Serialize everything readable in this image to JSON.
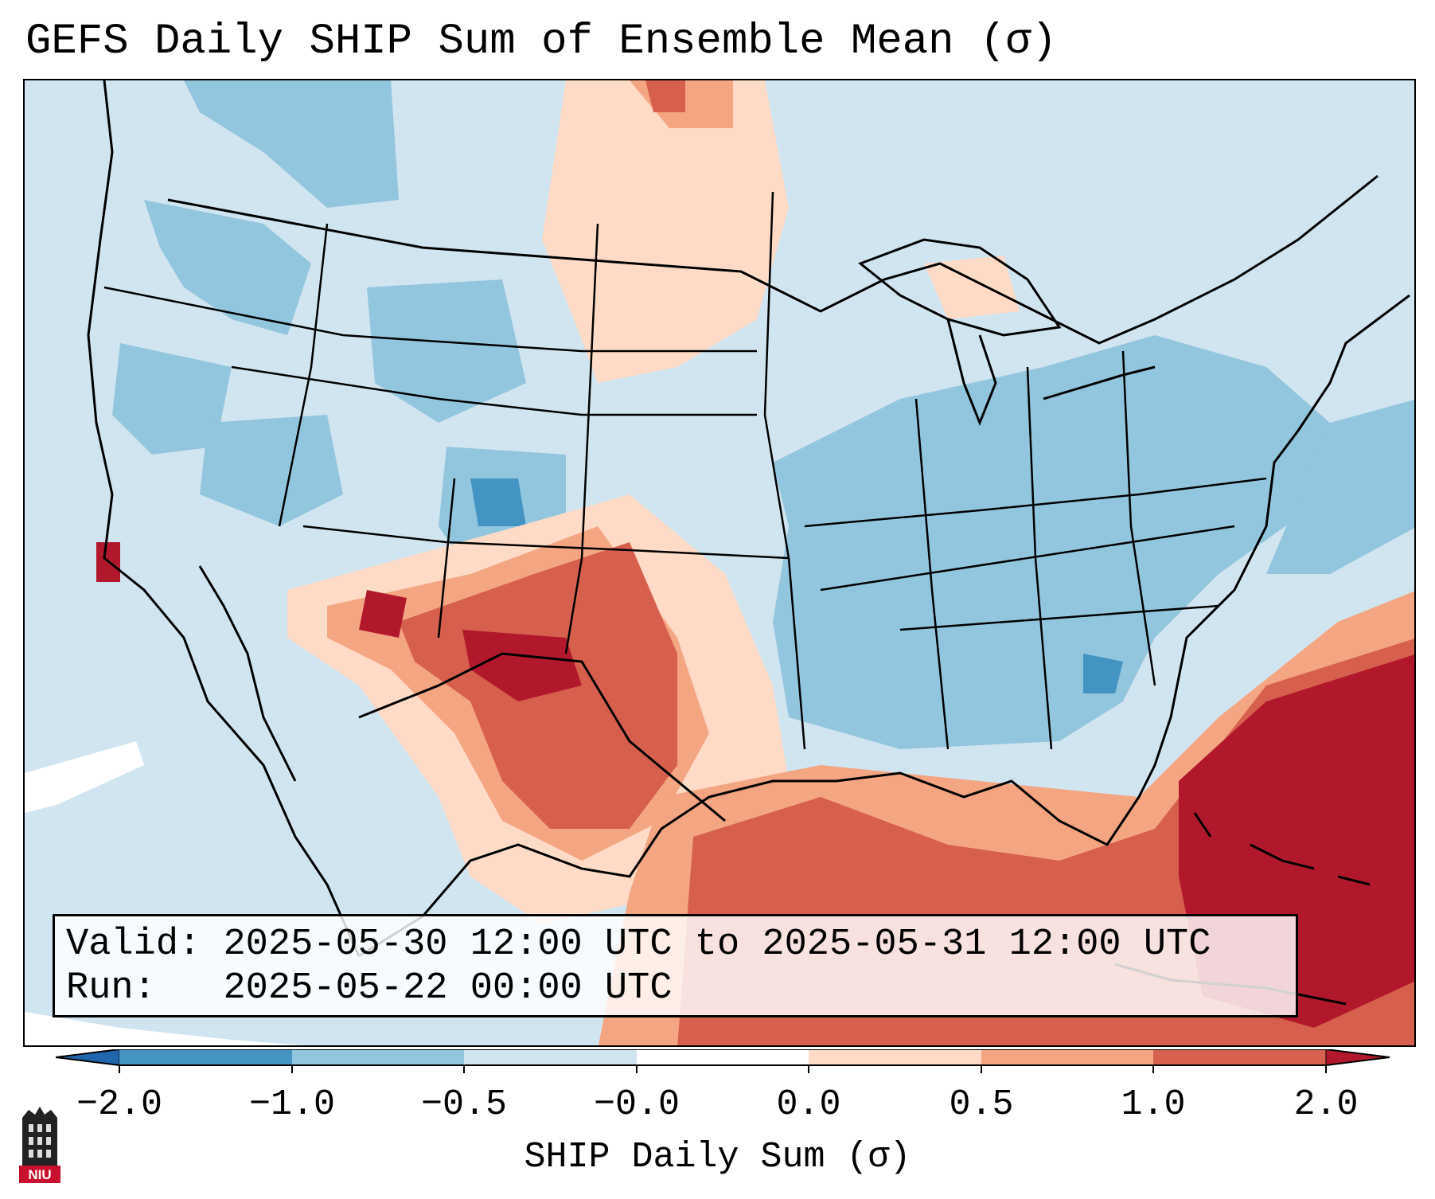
{
  "title": "GEFS Daily SHIP Sum of Ensemble Mean (σ)",
  "info": {
    "valid_label": "Valid:",
    "valid_value": "2025-05-30 12:00 UTC to 2025-05-31 12:00 UTC",
    "run_label": "Run:",
    "run_value": "2025-05-22 00:00 UTC"
  },
  "colorbar": {
    "label": "SHIP Daily Sum (σ)",
    "ticks": [
      "−2.0",
      "−1.0",
      "−0.5",
      "−0.0",
      "0.0",
      "0.5",
      "1.0",
      "2.0"
    ],
    "bins": [
      {
        "range": "< -2.0",
        "color": "#2166ac"
      },
      {
        "range": "-2.0 to -1.0",
        "color": "#4393c3"
      },
      {
        "range": "-1.0 to -0.5",
        "color": "#92c5de"
      },
      {
        "range": "-0.5 to -0.0",
        "color": "#d1e5f0"
      },
      {
        "range": "-0.0 to 0.0",
        "color": "#ffffff"
      },
      {
        "range": "0.0 to 0.5",
        "color": "#fddbc7"
      },
      {
        "range": "0.5 to 1.0",
        "color": "#f4a582"
      },
      {
        "range": "1.0 to 2.0",
        "color": "#d6604d"
      },
      {
        "range": "> 2.0",
        "color": "#b2182b"
      }
    ]
  },
  "logo": {
    "text": "NIU"
  },
  "map_regions": [
    {
      "name": "Great Plains / Texas anomaly",
      "category": "1.0 to 2.0",
      "color": "#d6604d"
    },
    {
      "name": "Gulf of Mexico / Atlantic anomaly",
      "category": "> 2.0",
      "color": "#b2182b"
    },
    {
      "name": "Eastern US negative anomaly",
      "category": "-1.0 to -0.5",
      "color": "#92c5de"
    },
    {
      "name": "Northern Plains warm anomaly",
      "category": "0.0 to 0.5",
      "color": "#fddbc7"
    }
  ]
}
